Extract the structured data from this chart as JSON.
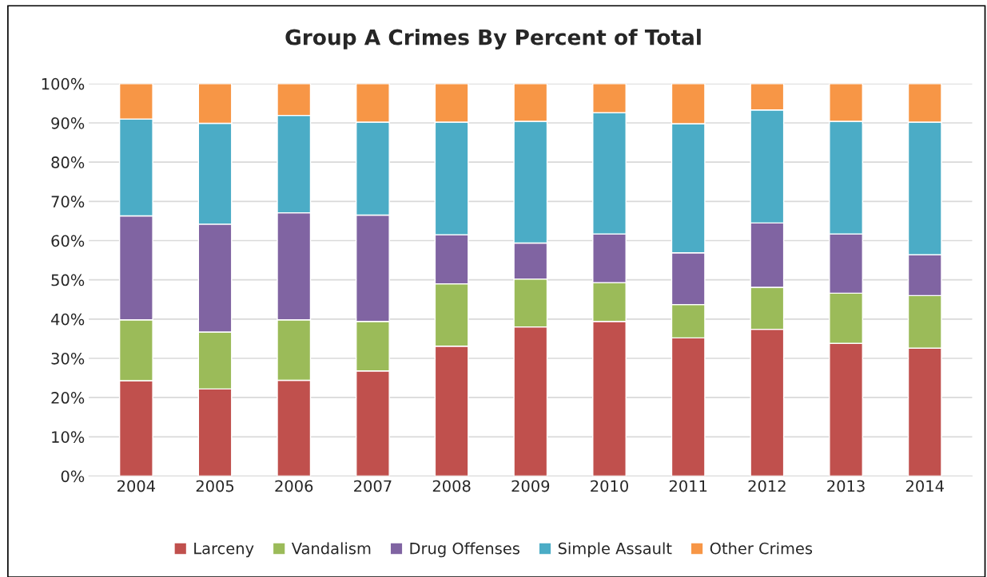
{
  "chart_data": {
    "type": "bar",
    "title": "Group A Crimes By Percent of Total",
    "stacked": true,
    "categories": [
      "2004",
      "2005",
      "2006",
      "2007",
      "2008",
      "2009",
      "2010",
      "2011",
      "2012",
      "2013",
      "2014"
    ],
    "series": [
      {
        "name": "Larceny",
        "color": "#c0504d",
        "values": [
          24.3,
          22.2,
          24.4,
          26.8,
          33.1,
          38.0,
          39.4,
          35.2,
          37.4,
          33.8,
          32.6
        ]
      },
      {
        "name": "Vandalism",
        "color": "#9bbb59",
        "values": [
          15.5,
          14.5,
          15.4,
          12.6,
          15.9,
          12.2,
          9.9,
          8.5,
          10.7,
          12.8,
          13.4
        ]
      },
      {
        "name": "Drug Offenses",
        "color": "#8064a2",
        "values": [
          26.5,
          27.5,
          27.3,
          27.1,
          12.5,
          9.2,
          12.4,
          13.2,
          16.4,
          15.1,
          10.4
        ]
      },
      {
        "name": "Simple Assault",
        "color": "#4bacc6",
        "values": [
          24.7,
          25.7,
          24.8,
          23.7,
          28.7,
          31.0,
          30.9,
          32.9,
          28.8,
          28.7,
          33.8
        ]
      },
      {
        "name": "Other Crimes",
        "color": "#f79646",
        "values": [
          9.0,
          10.1,
          8.1,
          9.8,
          9.8,
          9.6,
          7.4,
          10.2,
          6.7,
          9.6,
          9.8
        ]
      }
    ],
    "ylim": [
      0,
      100
    ],
    "yticks": [
      {
        "value": 0,
        "label": "0%"
      },
      {
        "value": 10,
        "label": "10%"
      },
      {
        "value": 20,
        "label": "20%"
      },
      {
        "value": 30,
        "label": "30%"
      },
      {
        "value": 40,
        "label": "40%"
      },
      {
        "value": 50,
        "label": "50%"
      },
      {
        "value": 60,
        "label": "60%"
      },
      {
        "value": 70,
        "label": "70%"
      },
      {
        "value": 80,
        "label": "80%"
      },
      {
        "value": 90,
        "label": "90%"
      },
      {
        "value": 100,
        "label": "100%"
      }
    ],
    "grid": "y",
    "legend": "bottom"
  }
}
